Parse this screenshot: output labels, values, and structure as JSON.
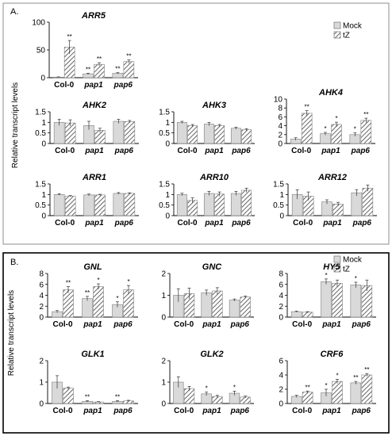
{
  "figure": {
    "ylabel": "Relative transcript levels",
    "legend": {
      "mock": "Mock",
      "tz": "tZ"
    },
    "colors": {
      "mock": "#d9d9d9",
      "border": "#7f7f7f",
      "frame": "#000000",
      "hatch": "#404040"
    }
  },
  "chart_data": [
    {
      "panel": "A",
      "letter": "A.",
      "type": "bar",
      "title": "ARR5",
      "categories": [
        "Col-0",
        "pap1",
        "pap6"
      ],
      "yticks": [
        "0",
        "50",
        "100"
      ],
      "ylim": [
        0,
        100
      ],
      "series": [
        {
          "name": "Mock",
          "values": [
            1,
            7,
            8
          ],
          "errors": [
            0.5,
            1,
            1
          ],
          "stars": [
            "",
            "**",
            "**"
          ]
        },
        {
          "name": "tZ",
          "values": [
            55,
            24,
            29
          ],
          "errors": [
            12,
            3,
            3
          ],
          "stars": [
            "**",
            "**",
            "**"
          ]
        }
      ]
    },
    {
      "panel": "A",
      "type": "bar",
      "title": "AHK2",
      "categories": [
        "Col-0",
        "pap1",
        "pap6"
      ],
      "yticks": [
        "0",
        "0.5",
        "1",
        "1.5"
      ],
      "ylim": [
        0,
        1.5
      ],
      "series": [
        {
          "name": "Mock",
          "values": [
            1.0,
            0.85,
            1.05
          ],
          "errors": [
            0.15,
            0.2,
            0.1
          ],
          "stars": [
            "",
            "",
            ""
          ]
        },
        {
          "name": "tZ",
          "values": [
            0.97,
            0.62,
            1.04
          ],
          "errors": [
            0.15,
            0.1,
            0.05
          ],
          "stars": [
            "",
            "",
            ""
          ]
        }
      ]
    },
    {
      "panel": "A",
      "type": "bar",
      "title": "AHK3",
      "categories": [
        "Col-0",
        "pap1",
        "pap6"
      ],
      "yticks": [
        "0",
        "0.5",
        "1",
        "1.5"
      ],
      "ylim": [
        0,
        1.5
      ],
      "series": [
        {
          "name": "Mock",
          "values": [
            1.0,
            0.92,
            0.72
          ],
          "errors": [
            0.05,
            0.08,
            0.05
          ],
          "stars": [
            "",
            "",
            ""
          ]
        },
        {
          "name": "tZ",
          "values": [
            0.85,
            0.85,
            0.65
          ],
          "errors": [
            0.05,
            0.05,
            0.05
          ],
          "stars": [
            "",
            "",
            ""
          ]
        }
      ]
    },
    {
      "panel": "A",
      "type": "bar",
      "title": "AHK4",
      "categories": [
        "Col-0",
        "pap1",
        "pap6"
      ],
      "yticks": [
        "0",
        "2",
        "4",
        "6",
        "8",
        "10"
      ],
      "ylim": [
        0,
        10
      ],
      "series": [
        {
          "name": "Mock",
          "values": [
            1.0,
            2.2,
            2.0
          ],
          "errors": [
            0.3,
            0.3,
            0.4
          ],
          "stars": [
            "",
            "*",
            "*"
          ]
        },
        {
          "name": "tZ",
          "values": [
            6.8,
            4.3,
            5.2
          ],
          "errors": [
            0.6,
            0.5,
            0.5
          ],
          "stars": [
            "**",
            "*",
            "**"
          ]
        }
      ]
    },
    {
      "panel": "A",
      "type": "bar",
      "title": "ARR1",
      "categories": [
        "Col-0",
        "pap1",
        "pap6"
      ],
      "yticks": [
        "0",
        "0.5",
        "1",
        "1.5"
      ],
      "ylim": [
        0,
        1.5
      ],
      "series": [
        {
          "name": "Mock",
          "values": [
            1.0,
            0.98,
            1.05
          ],
          "errors": [
            0.04,
            0.04,
            0.04
          ],
          "stars": [
            "",
            "",
            ""
          ]
        },
        {
          "name": "tZ",
          "values": [
            0.92,
            0.98,
            1.05
          ],
          "errors": [
            0.03,
            0.03,
            0.03
          ],
          "stars": [
            "",
            "",
            ""
          ]
        }
      ]
    },
    {
      "panel": "A",
      "type": "bar",
      "title": "ARR10",
      "categories": [
        "Col-0",
        "pap1",
        "pap6"
      ],
      "yticks": [
        "0",
        "0.5",
        "1",
        "1.5"
      ],
      "ylim": [
        0,
        1.5
      ],
      "series": [
        {
          "name": "Mock",
          "values": [
            1.0,
            1.05,
            1.05
          ],
          "errors": [
            0.06,
            0.1,
            0.1
          ],
          "stars": [
            "",
            "",
            ""
          ]
        },
        {
          "name": "tZ",
          "values": [
            0.72,
            1.02,
            1.2
          ],
          "errors": [
            0.12,
            0.1,
            0.1
          ],
          "stars": [
            "",
            "",
            ""
          ]
        }
      ]
    },
    {
      "panel": "A",
      "type": "bar",
      "title": "ARR12",
      "categories": [
        "Col-0",
        "pap1",
        "pap6"
      ],
      "yticks": [
        "0",
        "0.5",
        "1",
        "1.5"
      ],
      "ylim": [
        0,
        1.5
      ],
      "series": [
        {
          "name": "Mock",
          "values": [
            1.0,
            0.65,
            1.08
          ],
          "errors": [
            0.22,
            0.1,
            0.15
          ],
          "stars": [
            "",
            "",
            ""
          ]
        },
        {
          "name": "tZ",
          "values": [
            0.92,
            0.55,
            1.3
          ],
          "errors": [
            0.2,
            0.08,
            0.15
          ],
          "stars": [
            "",
            "",
            ""
          ]
        }
      ]
    },
    {
      "panel": "B",
      "letter": "B.",
      "type": "bar",
      "title": "GNL",
      "categories": [
        "Col-0",
        "pap1",
        "pap6"
      ],
      "yticks": [
        "0",
        "2",
        "4",
        "6",
        "8"
      ],
      "ylim": [
        0,
        8
      ],
      "series": [
        {
          "name": "Mock",
          "values": [
            1.0,
            3.4,
            2.3
          ],
          "errors": [
            0.2,
            0.4,
            0.5
          ],
          "stars": [
            "",
            "**",
            "*"
          ]
        },
        {
          "name": "tZ",
          "values": [
            5.0,
            5.6,
            5.0
          ],
          "errors": [
            0.6,
            0.5,
            0.8
          ],
          "stars": [
            "**",
            "*",
            "*"
          ]
        }
      ]
    },
    {
      "panel": "B",
      "type": "bar",
      "title": "GNC",
      "categories": [
        "Col-0",
        "pap1",
        "pap6"
      ],
      "yticks": [
        "0",
        "1",
        "2"
      ],
      "ylim": [
        0,
        2
      ],
      "series": [
        {
          "name": "Mock",
          "values": [
            1.0,
            1.12,
            0.78
          ],
          "errors": [
            0.3,
            0.12,
            0.05
          ],
          "stars": [
            "",
            "",
            ""
          ]
        },
        {
          "name": "tZ",
          "values": [
            1.08,
            1.2,
            0.92
          ],
          "errors": [
            0.25,
            0.15,
            0.05
          ],
          "stars": [
            "",
            "",
            ""
          ]
        }
      ]
    },
    {
      "panel": "B",
      "type": "bar",
      "title": "HY5",
      "categories": [
        "Col-0",
        "pap1",
        "pap6"
      ],
      "yticks": [
        "0",
        "2",
        "4",
        "6",
        "8"
      ],
      "ylim": [
        0,
        8
      ],
      "series": [
        {
          "name": "Mock",
          "values": [
            1.0,
            6.5,
            5.9
          ],
          "errors": [
            0.1,
            0.5,
            0.5
          ],
          "stars": [
            "",
            "*",
            "*"
          ]
        },
        {
          "name": "tZ",
          "values": [
            0.9,
            6.2,
            5.8
          ],
          "errors": [
            0.1,
            0.6,
            1.0
          ],
          "stars": [
            "",
            "",
            ""
          ]
        }
      ]
    },
    {
      "panel": "B",
      "type": "bar",
      "title": "GLK1",
      "categories": [
        "Col-0",
        "pap1",
        "pap6"
      ],
      "yticks": [
        "0",
        "1",
        "2"
      ],
      "ylim": [
        0,
        2
      ],
      "series": [
        {
          "name": "Mock",
          "values": [
            1.0,
            0.1,
            0.1
          ],
          "errors": [
            0.3,
            0.03,
            0.03
          ],
          "stars": [
            "",
            "**",
            "**"
          ]
        },
        {
          "name": "tZ",
          "values": [
            0.72,
            0.07,
            0.12
          ],
          "errors": [
            0.05,
            0.02,
            0.03
          ],
          "stars": [
            "",
            "",
            ""
          ]
        }
      ]
    },
    {
      "panel": "B",
      "type": "bar",
      "title": "GLK2",
      "categories": [
        "Col-0",
        "pap1",
        "pap6"
      ],
      "yticks": [
        "0",
        "1",
        "2"
      ],
      "ylim": [
        0,
        2
      ],
      "series": [
        {
          "name": "Mock",
          "values": [
            1.0,
            0.45,
            0.48
          ],
          "errors": [
            0.25,
            0.08,
            0.1
          ],
          "stars": [
            "",
            "*",
            "*"
          ]
        },
        {
          "name": "tZ",
          "values": [
            0.7,
            0.33,
            0.3
          ],
          "errors": [
            0.1,
            0.05,
            0.05
          ],
          "stars": [
            "",
            "",
            ""
          ]
        }
      ]
    },
    {
      "panel": "B",
      "type": "bar",
      "title": "CRF6",
      "categories": [
        "Col-0",
        "pap1",
        "pap6"
      ],
      "yticks": [
        "0",
        "2",
        "4",
        "6"
      ],
      "ylim": [
        0,
        6
      ],
      "series": [
        {
          "name": "Mock",
          "values": [
            1.0,
            1.5,
            2.9
          ],
          "errors": [
            0.15,
            0.5,
            0.2
          ],
          "stars": [
            "",
            "*",
            "**"
          ]
        },
        {
          "name": "tZ",
          "values": [
            1.6,
            3.1,
            4.0
          ],
          "errors": [
            0.15,
            0.3,
            0.2
          ],
          "stars": [
            "**",
            "*",
            "**"
          ]
        }
      ]
    }
  ]
}
